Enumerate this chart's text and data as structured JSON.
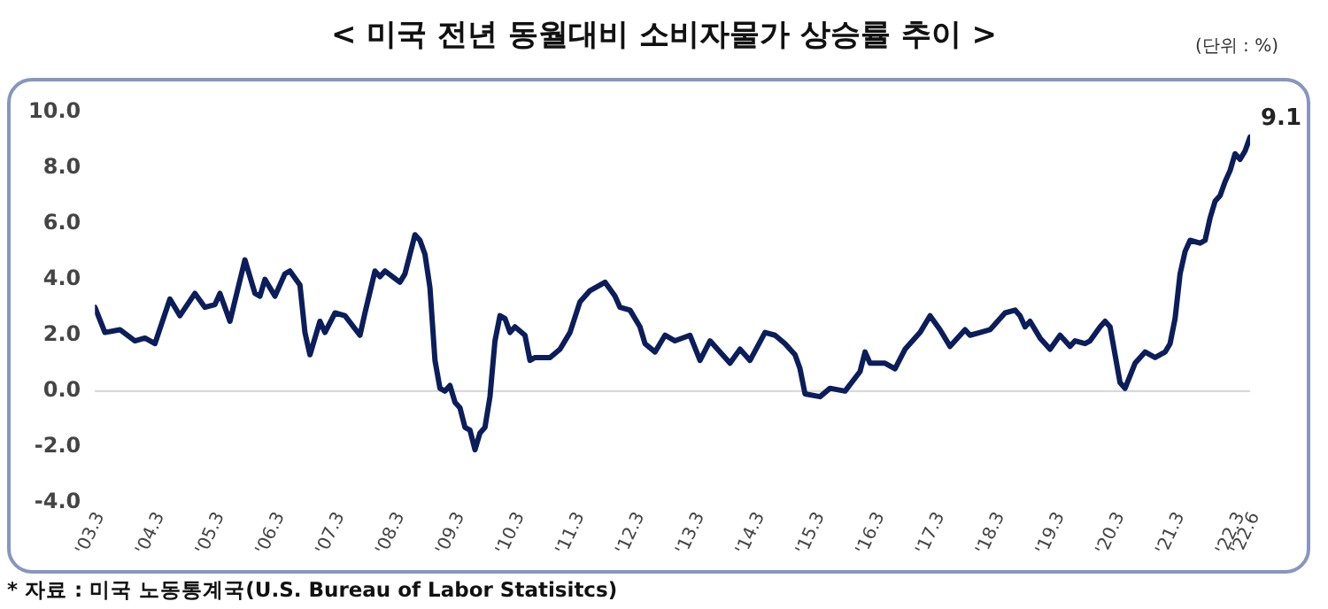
{
  "chart_data": {
    "type": "line",
    "title": "< 미국 전년 동월대비 소비자물가 상승률 추이 >",
    "annotations": [
      "(단위 : %)",
      "* 자료 : 미국 노동통계국(U.S. Bureau of Labor Statisitcs)",
      {
        "text": "9.1",
        "x": "2022-06",
        "y": 9.1
      }
    ],
    "x": [
      "2003-03",
      "2003-05",
      "2003-08",
      "2003-11",
      "2004-01",
      "2004-03",
      "2004-06",
      "2004-08",
      "2004-11",
      "2005-01",
      "2005-03",
      "2005-04",
      "2005-06",
      "2005-09",
      "2005-11",
      "2005-12",
      "2006-01",
      "2006-03",
      "2006-05",
      "2006-06",
      "2006-08",
      "2006-09",
      "2006-10",
      "2006-12",
      "2007-01",
      "2007-03",
      "2007-05",
      "2007-08",
      "2007-09",
      "2007-11",
      "2007-12",
      "2008-01",
      "2008-04",
      "2008-05",
      "2008-07",
      "2008-08",
      "2008-09",
      "2008-10",
      "2008-11",
      "2008-12",
      "2009-01",
      "2009-02",
      "2009-03",
      "2009-04",
      "2009-05",
      "2009-06",
      "2009-07",
      "2009-08",
      "2009-09",
      "2009-10",
      "2009-11",
      "2009-12",
      "2010-01",
      "2010-02",
      "2010-03",
      "2010-05",
      "2010-06",
      "2010-07",
      "2010-10",
      "2010-12",
      "2011-02",
      "2011-04",
      "2011-06",
      "2011-09",
      "2011-11",
      "2011-12",
      "2012-02",
      "2012-04",
      "2012-05",
      "2012-07",
      "2012-09",
      "2012-11",
      "2013-02",
      "2013-04",
      "2013-06",
      "2013-10",
      "2013-12",
      "2014-02",
      "2014-05",
      "2014-07",
      "2014-09",
      "2014-11",
      "2014-12",
      "2015-01",
      "2015-04",
      "2015-06",
      "2015-09",
      "2015-12",
      "2016-01",
      "2016-02",
      "2016-05",
      "2016-07",
      "2016-09",
      "2016-12",
      "2017-02",
      "2017-04",
      "2017-06",
      "2017-09",
      "2017-10",
      "2017-12",
      "2018-02",
      "2018-05",
      "2018-07",
      "2018-08",
      "2018-09",
      "2018-10",
      "2018-12",
      "2019-02",
      "2019-04",
      "2019-06",
      "2019-07",
      "2019-09",
      "2019-10",
      "2019-12",
      "2020-01",
      "2020-02",
      "2020-04",
      "2020-05",
      "2020-07",
      "2020-09",
      "2020-11",
      "2021-01",
      "2021-02",
      "2021-03",
      "2021-04",
      "2021-05",
      "2021-06",
      "2021-08",
      "2021-09",
      "2021-10",
      "2021-11",
      "2021-12",
      "2022-01",
      "2022-02",
      "2022-03",
      "2022-04",
      "2022-05",
      "2022-06"
    ],
    "series": [
      {
        "color": "#0b1d5a",
        "values": [
          3.0,
          2.1,
          2.2,
          1.8,
          1.9,
          1.7,
          3.3,
          2.7,
          3.5,
          3.0,
          3.1,
          3.5,
          2.5,
          4.7,
          3.5,
          3.4,
          4.0,
          3.4,
          4.2,
          4.3,
          3.8,
          2.1,
          1.3,
          2.5,
          2.1,
          2.8,
          2.7,
          2.0,
          2.8,
          4.3,
          4.1,
          4.3,
          3.9,
          4.2,
          5.6,
          5.4,
          4.9,
          3.7,
          1.1,
          0.1,
          0.0,
          0.2,
          -0.4,
          -0.6,
          -1.3,
          -1.4,
          -2.1,
          -1.5,
          -1.3,
          -0.2,
          1.8,
          2.7,
          2.6,
          2.1,
          2.3,
          2.0,
          1.1,
          1.2,
          1.2,
          1.5,
          2.1,
          3.2,
          3.6,
          3.9,
          3.4,
          3.0,
          2.9,
          2.3,
          1.7,
          1.4,
          2.0,
          1.8,
          2.0,
          1.1,
          1.8,
          1.0,
          1.5,
          1.1,
          2.1,
          2.0,
          1.7,
          1.3,
          0.8,
          -0.1,
          -0.2,
          0.1,
          0.0,
          0.7,
          1.4,
          1.0,
          1.0,
          0.8,
          1.5,
          2.1,
          2.7,
          2.2,
          1.6,
          2.2,
          2.0,
          2.1,
          2.2,
          2.8,
          2.9,
          2.7,
          2.3,
          2.5,
          1.9,
          1.5,
          2.0,
          1.6,
          1.8,
          1.7,
          1.8,
          2.3,
          2.5,
          2.3,
          0.3,
          0.1,
          1.0,
          1.4,
          1.2,
          1.4,
          1.7,
          2.6,
          4.2,
          5.0,
          5.4,
          5.3,
          5.4,
          6.2,
          6.8,
          7.0,
          7.5,
          7.9,
          8.5,
          8.3,
          8.6,
          9.1
        ]
      }
    ],
    "xlim": [
      "2003-03",
      "2022-06"
    ],
    "xticks": [
      {
        "value": "2003-03",
        "label": "'03.3"
      },
      {
        "value": "2004-03",
        "label": "'04.3"
      },
      {
        "value": "2005-03",
        "label": "'05.3"
      },
      {
        "value": "2006-03",
        "label": "'06.3"
      },
      {
        "value": "2007-03",
        "label": "'07.3"
      },
      {
        "value": "2008-03",
        "label": "'08.3"
      },
      {
        "value": "2009-03",
        "label": "'09.3"
      },
      {
        "value": "2010-03",
        "label": "'10.3"
      },
      {
        "value": "2011-03",
        "label": "'11.3"
      },
      {
        "value": "2012-03",
        "label": "'12.3"
      },
      {
        "value": "2013-03",
        "label": "'13.3"
      },
      {
        "value": "2014-03",
        "label": "'14.3"
      },
      {
        "value": "2015-03",
        "label": "'15.3"
      },
      {
        "value": "2016-03",
        "label": "'16.3"
      },
      {
        "value": "2017-03",
        "label": "'17.3"
      },
      {
        "value": "2018-03",
        "label": "'18.3"
      },
      {
        "value": "2019-03",
        "label": "'19.3"
      },
      {
        "value": "2020-03",
        "label": "'20.3"
      },
      {
        "value": "2021-03",
        "label": "'21.3"
      },
      {
        "value": "2022-03",
        "label": "'22.3"
      },
      {
        "value": "2022-06",
        "label": "'22.6"
      }
    ],
    "ylim": [
      -4,
      10
    ],
    "yticks": [
      {
        "value": -4,
        "label": "-4.0"
      },
      {
        "value": -2,
        "label": "-2.0"
      },
      {
        "value": 0,
        "label": "0.0"
      },
      {
        "value": 2,
        "label": "2.0"
      },
      {
        "value": 4,
        "label": "4.0"
      },
      {
        "value": 6,
        "label": "6.0"
      },
      {
        "value": 8,
        "label": "8.0"
      },
      {
        "value": 10,
        "label": "10.0"
      }
    ],
    "ref_lines": [
      {
        "axis": "y",
        "value": 0,
        "color": "#d9d9d9"
      }
    ],
    "grid": false,
    "legend": false,
    "marker": "none",
    "line_style": "solid"
  }
}
